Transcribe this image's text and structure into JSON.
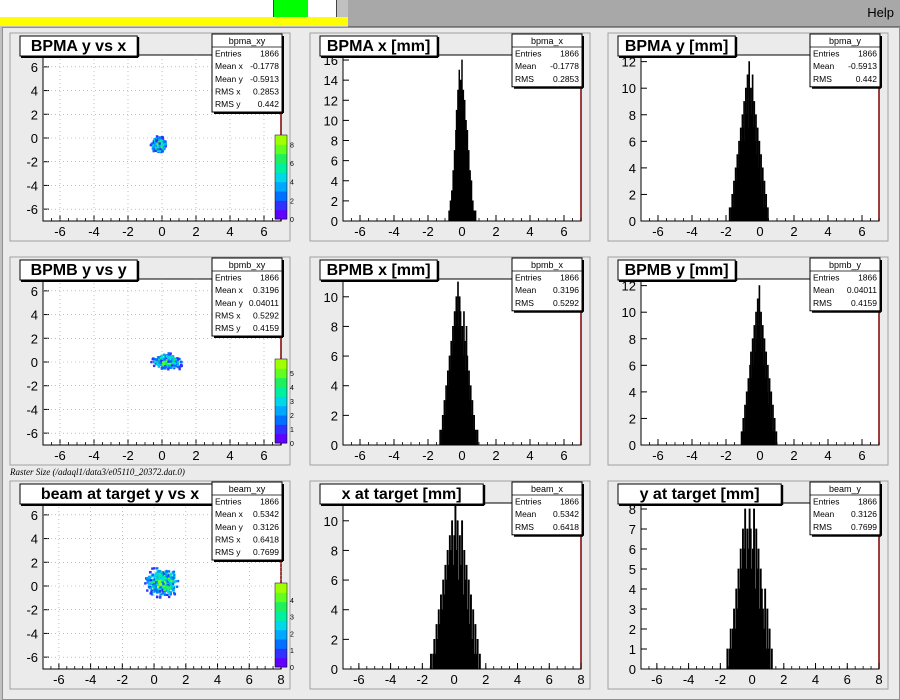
{
  "menu": {
    "help_label": "Help"
  },
  "raster_label": "Raster Size (/adaql1/data3/e05110_20372.dat.0)",
  "colors": {
    "pad": "#ebebeb",
    "frame": "#ffffff",
    "axis": "#000000",
    "hist_fill": "#000000",
    "stat_border": "#000000"
  },
  "chart_data": [
    {
      "id": "p11",
      "type": "heatmap",
      "title": "BPMA y vs x",
      "stats_name": "bpma_xy",
      "stats": [
        {
          "label": "Entries",
          "value": "1866"
        },
        {
          "label": "Mean x",
          "value": "-0.1778"
        },
        {
          "label": "Mean y",
          "value": "-0.5913"
        },
        {
          "label": "RMS x",
          "value": "0.2853"
        },
        {
          "label": "RMS y",
          "value": "0.442"
        }
      ],
      "xlim": [
        -7,
        7
      ],
      "ylim": [
        -7,
        7
      ],
      "xticks": [
        "-6",
        "-4",
        "-2",
        "0",
        "2",
        "4",
        "6"
      ],
      "yticks": [
        "6",
        "4",
        "2",
        "0",
        "-2",
        "-4",
        "-6"
      ],
      "palette_ticks": [
        "8",
        "6",
        "4",
        "2",
        "0"
      ],
      "palette_max": 9,
      "blob": {
        "cx": -0.18,
        "cy": -0.59,
        "sx": 0.28,
        "sy": 0.44,
        "n": 320
      }
    },
    {
      "id": "p12",
      "type": "bar",
      "title": "BPMA x [mm]",
      "stats_name": "bpma_x",
      "stats": [
        {
          "label": "Entries",
          "value": "1866"
        },
        {
          "label": "Mean",
          "value": "-0.1778"
        },
        {
          "label": "RMS",
          "value": "0.2853"
        }
      ],
      "xlim": [
        -7,
        7
      ],
      "ylim": [
        0,
        16.5
      ],
      "xticks": [
        "-6",
        "-4",
        "-2",
        "0",
        "2",
        "4",
        "6"
      ],
      "yticks": [
        "16",
        "14",
        "12",
        "10",
        "8",
        "6",
        "4",
        "2",
        "0"
      ],
      "hist": {
        "start": -0.86,
        "width": 0.04,
        "values": [
          0,
          0,
          1,
          0,
          2,
          1,
          3,
          2,
          5,
          4,
          7,
          6,
          9,
          11,
          8,
          13,
          10,
          15,
          12,
          14,
          9,
          16,
          11,
          13,
          8,
          12,
          7,
          10,
          6,
          9,
          5,
          7,
          4,
          5,
          3,
          4,
          2,
          2,
          1,
          1,
          0,
          1
        ]
      }
    },
    {
      "id": "p13",
      "type": "bar",
      "title": "BPMA y [mm]",
      "stats_name": "bpma_y",
      "stats": [
        {
          "label": "Entries",
          "value": "1866"
        },
        {
          "label": "Mean",
          "value": "-0.5913"
        },
        {
          "label": "RMS",
          "value": "0.442"
        }
      ],
      "xlim": [
        -7,
        7
      ],
      "ylim": [
        0,
        12.5
      ],
      "xticks": [
        "-6",
        "-4",
        "-2",
        "0",
        "2",
        "4",
        "6"
      ],
      "yticks": [
        "12",
        "10",
        "8",
        "6",
        "4",
        "2",
        "0"
      ],
      "hist": {
        "start": -1.81,
        "width": 0.05,
        "values": [
          1,
          0,
          1,
          2,
          1,
          3,
          2,
          4,
          3,
          5,
          4,
          6,
          5,
          7,
          6,
          8,
          7,
          9,
          6,
          10,
          8,
          11,
          7,
          12,
          9,
          10,
          8,
          11,
          7,
          9,
          6,
          8,
          5,
          7,
          4,
          6,
          3,
          5,
          2,
          4,
          1,
          3,
          1,
          2,
          0,
          1
        ]
      }
    },
    {
      "id": "p21",
      "type": "heatmap",
      "title": "BPMB y vs y",
      "stats_name": "bpmb_xy",
      "stats": [
        {
          "label": "Entries",
          "value": "1866"
        },
        {
          "label": "Mean x",
          "value": "0.3196"
        },
        {
          "label": "Mean y",
          "value": "0.04011"
        },
        {
          "label": "RMS x",
          "value": "0.5292"
        },
        {
          "label": "RMS y",
          "value": "0.4159"
        }
      ],
      "xlim": [
        -7,
        7
      ],
      "ylim": [
        -7,
        7
      ],
      "xticks": [
        "-6",
        "-4",
        "-2",
        "0",
        "2",
        "4",
        "6"
      ],
      "yticks": [
        "6",
        "4",
        "2",
        "0",
        "-2",
        "-4",
        "-6"
      ],
      "palette_ticks": [
        "5",
        "4",
        "3",
        "2",
        "1",
        "0"
      ],
      "palette_max": 6,
      "blob": {
        "cx": 0.32,
        "cy": 0.04,
        "sx": 0.53,
        "sy": 0.42,
        "n": 380
      }
    },
    {
      "id": "p22",
      "type": "bar",
      "title": "BPMB x [mm]",
      "stats_name": "bpmb_x",
      "stats": [
        {
          "label": "Entries",
          "value": "1866"
        },
        {
          "label": "Mean",
          "value": "0.3196"
        },
        {
          "label": "RMS",
          "value": "0.5292"
        }
      ],
      "xlim": [
        -7,
        7
      ],
      "ylim": [
        0,
        11.2
      ],
      "xticks": [
        "-6",
        "-4",
        "-2",
        "0",
        "2",
        "4",
        "6"
      ],
      "yticks": [
        "10",
        "8",
        "6",
        "4",
        "2",
        "0"
      ],
      "hist": {
        "start": -1.36,
        "width": 0.05,
        "values": [
          0,
          1,
          0,
          1,
          2,
          1,
          3,
          2,
          4,
          3,
          5,
          4,
          6,
          5,
          7,
          6,
          8,
          7,
          9,
          8,
          10,
          9,
          11,
          8,
          10,
          9,
          7,
          8,
          6,
          9,
          7,
          5,
          8,
          6,
          4,
          5,
          3,
          4,
          2,
          3,
          1,
          2,
          1,
          1,
          0,
          1
        ]
      }
    },
    {
      "id": "p23",
      "type": "bar",
      "title": "BPMB y [mm]",
      "stats_name": "bpmb_y",
      "stats": [
        {
          "label": "Entries",
          "value": "1866"
        },
        {
          "label": "Mean",
          "value": "0.04011"
        },
        {
          "label": "RMS",
          "value": "0.4159"
        }
      ],
      "xlim": [
        -7,
        7
      ],
      "ylim": [
        0,
        12.5
      ],
      "xticks": [
        "-6",
        "-4",
        "-2",
        "0",
        "2",
        "4",
        "6"
      ],
      "yticks": [
        "12",
        "10",
        "8",
        "6",
        "4",
        "2",
        "0"
      ],
      "hist": {
        "start": -1.16,
        "width": 0.05,
        "values": [
          0,
          1,
          1,
          2,
          1,
          3,
          2,
          4,
          3,
          5,
          4,
          6,
          7,
          5,
          8,
          6,
          9,
          7,
          10,
          8,
          11,
          9,
          12,
          8,
          10,
          7,
          9,
          6,
          8,
          5,
          7,
          4,
          6,
          3,
          5,
          2,
          4,
          1,
          3,
          1,
          2,
          0,
          1
        ]
      }
    },
    {
      "id": "p31",
      "type": "heatmap",
      "title": "beam at target y vs x",
      "stats_name": "beam_xy",
      "stats": [
        {
          "label": "Entries",
          "value": "1866"
        },
        {
          "label": "Mean x",
          "value": "0.5342"
        },
        {
          "label": "Mean y",
          "value": "0.3126"
        },
        {
          "label": "RMS x",
          "value": "0.6418"
        },
        {
          "label": "RMS y",
          "value": "0.7699"
        }
      ],
      "xlim": [
        -7,
        8
      ],
      "ylim": [
        -7,
        7
      ],
      "xticks": [
        "-6",
        "-4",
        "-2",
        "0",
        "2",
        "4",
        "6",
        "8"
      ],
      "yticks": [
        "6",
        "4",
        "2",
        "0",
        "-2",
        "-4",
        "-6"
      ],
      "palette_ticks": [
        "4",
        "3",
        "2",
        "1",
        "0"
      ],
      "palette_max": 5,
      "blob": {
        "cx": 0.53,
        "cy": 0.31,
        "sx": 0.64,
        "sy": 0.77,
        "n": 520
      }
    },
    {
      "id": "p32",
      "type": "bar",
      "title": "x at target [mm]",
      "stats_name": "beam_x",
      "stats": [
        {
          "label": "Entries",
          "value": "1866"
        },
        {
          "label": "Mean",
          "value": "0.5342"
        },
        {
          "label": "RMS",
          "value": "0.6418"
        }
      ],
      "xlim": [
        -7,
        8
      ],
      "ylim": [
        0,
        11.2
      ],
      "xticks": [
        "-6",
        "-4",
        "-2",
        "0",
        "2",
        "4",
        "6",
        "8"
      ],
      "yticks": [
        "10",
        "8",
        "6",
        "4",
        "2",
        "0"
      ],
      "hist": {
        "start": -1.56,
        "width": 0.07,
        "values": [
          0,
          1,
          0,
          1,
          2,
          1,
          3,
          2,
          4,
          3,
          5,
          4,
          6,
          5,
          7,
          6,
          8,
          7,
          9,
          8,
          10,
          7,
          9,
          11,
          8,
          10,
          6,
          9,
          7,
          10,
          5,
          8,
          6,
          7,
          4,
          6,
          3,
          5,
          2,
          4,
          1,
          3,
          1,
          2,
          0,
          1
        ]
      }
    },
    {
      "id": "p33",
      "type": "bar",
      "title": "y at target [mm]",
      "stats_name": "beam_y",
      "stats": [
        {
          "label": "Entries",
          "value": "1866"
        },
        {
          "label": "Mean",
          "value": "0.3126"
        },
        {
          "label": "RMS",
          "value": "0.7699"
        }
      ],
      "xlim": [
        -7,
        8
      ],
      "ylim": [
        0,
        8.3
      ],
      "xticks": [
        "-6",
        "-4",
        "-2",
        "0",
        "2",
        "4",
        "6",
        "8"
      ],
      "yticks": [
        "8",
        "7",
        "6",
        "5",
        "4",
        "3",
        "2",
        "1",
        "0"
      ],
      "hist": {
        "start": -1.66,
        "width": 0.07,
        "values": [
          0,
          1,
          0,
          1,
          2,
          1,
          2,
          3,
          2,
          4,
          3,
          5,
          4,
          6,
          5,
          7,
          6,
          8,
          5,
          7,
          6,
          8,
          7,
          5,
          6,
          8,
          4,
          7,
          5,
          6,
          3,
          5,
          4,
          3,
          2,
          4,
          1,
          3,
          1,
          2,
          0,
          1
        ]
      }
    }
  ]
}
